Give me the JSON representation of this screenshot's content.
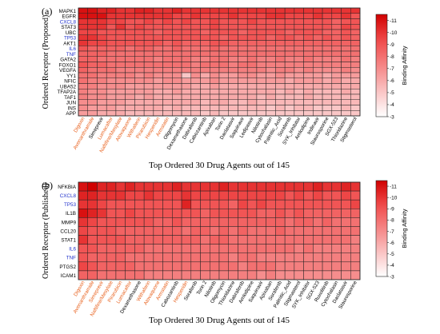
{
  "figure_labels": [
    "(a)",
    "(b)"
  ],
  "colors": {
    "accent_text": "#e8601c",
    "highlight_text": "#2233cc",
    "normal_text": "#000000",
    "scale_low": "#ffffff",
    "scale_mid": "#f04a4a",
    "scale_high": "#d00000",
    "grid": "#222222"
  },
  "chart_data": [
    {
      "type": "heatmap",
      "panel": "(a)",
      "ylabel": "Ordered Receptor (Proposed)",
      "xlabel": "Top Ordered 30 Drug Agents out of 145",
      "colorbar_label": "Binding Affinity",
      "colorbar_ticks": [
        "-11",
        "-10",
        "-9",
        "-8",
        "-7",
        "-6",
        "-5",
        "-4",
        "-3"
      ],
      "value_range": [
        -3,
        -11.5
      ],
      "rows": [
        "MAPK1",
        "EGFR",
        "CXCL8",
        "STAT3",
        "UBC",
        "TP53",
        "AKT1",
        "IL6",
        "TNF",
        "GATA2",
        "FOXO1",
        "VEGFA",
        "YY1",
        "NFIC",
        "UBA52",
        "TFAP2A",
        "TAF1",
        "JUN",
        "INS",
        "APP"
      ],
      "row_highlight": [
        false,
        false,
        true,
        false,
        false,
        true,
        false,
        true,
        true,
        false,
        false,
        false,
        false,
        false,
        false,
        false,
        false,
        false,
        false,
        false
      ],
      "columns": [
        "Digoxin",
        "Avenanthramide",
        "Simeprevir",
        "Lumacaftor",
        "Naftifine/Mesylate",
        "Atovaquone",
        "Withaferin",
        "Pirarubicin",
        "Hesperidin",
        "Armstatin",
        "Oligomycin",
        "Dexamethasone",
        "Dabrafenib",
        "Cabozantinib",
        "Apixaban",
        "Torin 2",
        "Daclatasvir",
        "Saquinavir",
        "Ledipasvir",
        "Nilotinib",
        "Cytochalasin",
        "Palmitic_Acid",
        "Sorafenib",
        "SYK_Inhibitor",
        "Amlodipine",
        "Indinavir",
        "Staurosporine",
        "SGX-523",
        "Thioridazine",
        "Stigmasterol"
      ],
      "column_highlight": [
        true,
        true,
        false,
        true,
        true,
        true,
        true,
        true,
        true,
        true,
        false,
        false,
        false,
        false,
        false,
        false,
        false,
        false,
        false,
        false,
        false,
        false,
        false,
        false,
        false,
        false,
        false,
        false,
        false,
        false
      ],
      "values": [
        [
          -11,
          -11,
          -10.5,
          -10.5,
          -10,
          -10,
          -10.5,
          -10.5,
          -10,
          -10,
          -10.5,
          -10,
          -10,
          -10,
          -10,
          -10,
          -10,
          -10,
          -10,
          -10,
          -10,
          -10,
          -10,
          -10,
          -10,
          -10,
          -10,
          -10,
          -10,
          -10
        ],
        [
          -11,
          -11,
          -11,
          -10,
          -10,
          -10,
          -10,
          -10,
          -10,
          -10,
          -9.5,
          -9.5,
          -10,
          -9.5,
          -9.5,
          -9.5,
          -10,
          -9.5,
          -9.5,
          -9.5,
          -10,
          -10,
          -9.5,
          -9.5,
          -9.5,
          -10,
          -9.5,
          -9.5,
          -10,
          -9
        ],
        [
          -10,
          -10,
          -10,
          -9.5,
          -9.5,
          -9,
          -9,
          -9.5,
          -9,
          -9.5,
          -9,
          -9.5,
          -9,
          -9,
          -9.5,
          -9,
          -9,
          -9,
          -9.5,
          -9,
          -9,
          -9,
          -9,
          -9,
          -9,
          -9,
          -9,
          -8.5,
          -9,
          -9
        ],
        [
          -10,
          -10,
          -10,
          -9,
          -10,
          -9,
          -9.5,
          -9,
          -9,
          -9,
          -9,
          -9,
          -9,
          -9,
          -9.5,
          -9,
          -9,
          -9,
          -9,
          -9,
          -9,
          -9,
          -9,
          -9,
          -9,
          -9,
          -9,
          -8.5,
          -9.5,
          -9
        ],
        [
          -9.5,
          -9.5,
          -9,
          -9,
          -9,
          -9,
          -9,
          -9,
          -8.5,
          -9,
          -9,
          -9,
          -9,
          -8.5,
          -9,
          -9,
          -9,
          -8.5,
          -9,
          -9,
          -9,
          -9,
          -8.5,
          -9,
          -9,
          -9,
          -8.5,
          -8.5,
          -9,
          -8.5
        ],
        [
          -10,
          -10,
          -9.5,
          -9,
          -9,
          -9,
          -9,
          -9,
          -9,
          -9,
          -9,
          -9,
          -9,
          -9,
          -9,
          -8.5,
          -9,
          -9,
          -9,
          -9,
          -8.5,
          -9,
          -9,
          -8.5,
          -9,
          -8.5,
          -9,
          -8.5,
          -9,
          -8.5
        ],
        [
          -10,
          -9.5,
          -9.5,
          -9,
          -9,
          -9,
          -9,
          -9,
          -9,
          -8.5,
          -9,
          -8.5,
          -8.5,
          -8.5,
          -9,
          -9,
          -8.5,
          -8.5,
          -8.5,
          -8.5,
          -8.5,
          -8.5,
          -8.5,
          -8.5,
          -8.5,
          -8.5,
          -8.5,
          -8.5,
          -8.5,
          -8.5
        ],
        [
          -9,
          -8.5,
          -8.5,
          -8.5,
          -8.5,
          -8,
          -8.5,
          -8.5,
          -8,
          -8,
          -8.5,
          -8,
          -8,
          -8,
          -8.5,
          -8,
          -8,
          -8,
          -8,
          -8,
          -8,
          -8,
          -8,
          -8,
          -8,
          -8,
          -8,
          -8,
          -8,
          -8
        ],
        [
          -8.5,
          -8.5,
          -8.5,
          -8,
          -8,
          -8,
          -8,
          -8,
          -8,
          -8,
          -8,
          -8,
          -8,
          -8,
          -8,
          -8,
          -8,
          -8,
          -8,
          -8,
          -8,
          -8,
          -8,
          -8,
          -8,
          -8,
          -8,
          -8,
          -8,
          -8
        ],
        [
          -8.5,
          -8.5,
          -8,
          -8,
          -8,
          -8,
          -8,
          -8,
          -7.5,
          -8,
          -8,
          -8,
          -7.5,
          -7.5,
          -8,
          -8,
          -7.5,
          -7.5,
          -8,
          -7.5,
          -7.5,
          -8,
          -7.5,
          -7.5,
          -8,
          -7.5,
          -7.5,
          -7.5,
          -8,
          -7.5
        ],
        [
          -9,
          -8.5,
          -8.5,
          -8,
          -8,
          -8,
          -8,
          -8,
          -8,
          -8,
          -8,
          -8,
          -7.5,
          -8,
          -8,
          -8,
          -7.5,
          -8,
          -8,
          -7.5,
          -7.5,
          -7.5,
          -7.5,
          -7.5,
          -7.5,
          -7.5,
          -7.5,
          -7.5,
          -7.5,
          -7.5
        ],
        [
          -8.5,
          -8,
          -8,
          -8,
          -7.5,
          -7.5,
          -7.5,
          -7.5,
          -7.5,
          -7.5,
          -7.5,
          -7.5,
          -7.5,
          -7.5,
          -7.5,
          -7.5,
          -7.5,
          -7.5,
          -7.5,
          -7.5,
          -7,
          -7.5,
          -7.5,
          -7,
          -7.5,
          -7,
          -7,
          -7,
          -7.5,
          -7
        ],
        [
          -8,
          -8,
          -7.5,
          -7.5,
          -7.5,
          -7.5,
          -7,
          -7.5,
          -7,
          -7,
          -7,
          -5,
          -7,
          -6,
          -7,
          -6.5,
          -6.5,
          -7,
          -7,
          -6.5,
          -6.5,
          -7,
          -6.5,
          -6.5,
          -6.5,
          -6.5,
          -6,
          -6.5,
          -6.5,
          -6.5
        ],
        [
          -8,
          -7.5,
          -7.5,
          -7,
          -7,
          -7,
          -7,
          -7,
          -6.5,
          -7,
          -7,
          -6.5,
          -6.5,
          -6.5,
          -7,
          -6.5,
          -6.5,
          -6.5,
          -6.5,
          -6.5,
          -6.5,
          -6.5,
          -6,
          -6.5,
          -6.5,
          -6.5,
          -6,
          -6.5,
          -6,
          -6
        ],
        [
          -7.5,
          -7.5,
          -7,
          -7,
          -7,
          -6.5,
          -6.5,
          -6.5,
          -6.5,
          -6.5,
          -6.5,
          -6.5,
          -6,
          -6,
          -6.5,
          -6,
          -6,
          -6,
          -6,
          -6,
          -6,
          -6,
          -6,
          -6,
          -6,
          -6,
          -6,
          -6,
          -6,
          -6
        ],
        [
          -7.5,
          -7,
          -7,
          -6.5,
          -6.5,
          -6.5,
          -6.5,
          -6.5,
          -6,
          -6,
          -6.5,
          -6,
          -6,
          -6,
          -6,
          -6,
          -6,
          -6,
          -6,
          -6,
          -6,
          -5.5,
          -6,
          -5.5,
          -6,
          -5.5,
          -5.5,
          -5.5,
          -6,
          -5.5
        ],
        [
          -7.5,
          -7,
          -7,
          -6.5,
          -6.5,
          -6.5,
          -6,
          -6.5,
          -6,
          -6,
          -6,
          -6,
          -6,
          -6,
          -6,
          -6,
          -6,
          -6,
          -6,
          -5.5,
          -6,
          -5.5,
          -5.5,
          -5.5,
          -6,
          -5.5,
          -5.5,
          -5.5,
          -5.5,
          -5.5
        ],
        [
          -7,
          -7,
          -6.5,
          -6.5,
          -6.5,
          -6,
          -6,
          -6,
          -6,
          -6,
          -6,
          -6,
          -6,
          -5.5,
          -6,
          -6,
          -5.5,
          -5.5,
          -6,
          -5.5,
          -5.5,
          -5.5,
          -5.5,
          -5.5,
          -5.5,
          -5.5,
          -5.5,
          -5.5,
          -5.5,
          -5.5
        ],
        [
          -7,
          -6.5,
          -6.5,
          -6.5,
          -6,
          -6,
          -6,
          -6,
          -6,
          -5.5,
          -6,
          -5.5,
          -5.5,
          -5.5,
          -5.5,
          -5.5,
          -5.5,
          -5.5,
          -5.5,
          -5.5,
          -5,
          -5.5,
          -5,
          -5.5,
          -5.5,
          -5,
          -5,
          -5,
          -5.5,
          -5
        ],
        [
          -6.5,
          -6.5,
          -6,
          -6,
          -6,
          -5.5,
          -5.5,
          -5.5,
          -5.5,
          -5.5,
          -5.5,
          -5.5,
          -5.5,
          -5,
          -5.5,
          -5,
          -5,
          -5,
          -5,
          -5,
          -5,
          -5,
          -5,
          -5,
          -5,
          -5,
          -5,
          -5,
          -5,
          -5
        ]
      ]
    },
    {
      "type": "heatmap",
      "panel": "(b)",
      "ylabel": "Ordered Receptor (Published)",
      "xlabel": "Top Ordered 30 Drug Agents out of 145",
      "colorbar_label": "Binding Affinity",
      "colorbar_ticks": [
        "-11",
        "-10",
        "-9",
        "-8",
        "-7",
        "-6",
        "-5",
        "-4",
        "-3"
      ],
      "value_range": [
        -3,
        -11.5
      ],
      "rows": [
        "NFKBIA",
        "CXCL8",
        "TP53",
        "IL1B",
        "MMP9",
        "CCL20",
        "STAT1",
        "IL6",
        "TNF",
        "PTGS2",
        "ICAM1"
      ],
      "row_highlight": [
        false,
        true,
        true,
        false,
        false,
        false,
        false,
        true,
        true,
        false,
        false
      ],
      "columns": [
        "Digoxin",
        "Avenanthramide",
        "Simeprevir",
        "Naftifine/Mesylate",
        "Pirarubicin",
        "Lumacaftor",
        "Dexamethasone",
        "Withaferin",
        "Atovaquone",
        "Armstatin",
        "Cabozantinib",
        "Hesperidin",
        "Sorafenib",
        "Torin 2",
        "Nilotinib",
        "Oligomycin",
        "Thioridazine",
        "Dabrafenib",
        "Amlodipine",
        "Saquinavir",
        "Apixaban",
        "Sorafenib",
        "Palmitic_Acid",
        "Stigmasterol",
        "SYK_Inhibitor",
        "SGX-523",
        "Ruxolitinib",
        "Cytochalasin",
        "Daclatasvir",
        "Staurosporine"
      ],
      "column_highlight": [
        true,
        true,
        true,
        true,
        true,
        true,
        false,
        true,
        true,
        true,
        false,
        true,
        false,
        false,
        false,
        false,
        false,
        false,
        false,
        false,
        false,
        false,
        false,
        false,
        false,
        false,
        false,
        false,
        false,
        false
      ],
      "values": [
        [
          -11,
          -11.5,
          -10.5,
          -10.5,
          -10,
          -10.5,
          -10,
          -10,
          -10,
          -10,
          -10.5,
          -10,
          -10,
          -10,
          -10,
          -10.5,
          -10,
          -10,
          -10,
          -10,
          -10,
          -10,
          -10,
          -10,
          -10,
          -10.5,
          -10,
          -10,
          -10.5,
          -10
        ],
        [
          -10.5,
          -10.5,
          -10,
          -10,
          -10,
          -9.5,
          -9.5,
          -10,
          -9.5,
          -9.5,
          -9.5,
          -10,
          -9.5,
          -9.5,
          -9.5,
          -9.5,
          -9.5,
          -9.5,
          -9.5,
          -9.5,
          -9.5,
          -9.5,
          -9,
          -9.5,
          -9,
          -9.5,
          -9,
          -9,
          -9.5,
          -9
        ],
        [
          -10,
          -10,
          -9.5,
          -9,
          -9,
          -9,
          -9,
          -9,
          -9,
          -9,
          -9,
          -10.5,
          -9,
          -9,
          -9,
          -9,
          -8.5,
          -9.5,
          -9,
          -9.5,
          -9,
          -9,
          -9,
          -9,
          -9,
          -9,
          -9,
          -9,
          -9,
          -9.5
        ],
        [
          -11,
          -10.5,
          -10,
          -9,
          -9,
          -9.5,
          -9,
          -9,
          -9,
          -9,
          -9,
          -9,
          -9,
          -8.5,
          -9,
          -9,
          -9,
          -9,
          -9,
          -8.5,
          -8.5,
          -9,
          -8.5,
          -9,
          -8.5,
          -8.5,
          -8.5,
          -8.5,
          -8.5,
          -8.5
        ],
        [
          -10,
          -9.5,
          -9,
          -9,
          -9,
          -9,
          -9,
          -9,
          -8.5,
          -8.5,
          -9,
          -8.5,
          -8.5,
          -8.5,
          -8.5,
          -8.5,
          -8.5,
          -8.5,
          -8.5,
          -8.5,
          -8.5,
          -8.5,
          -8,
          -8.5,
          -8.5,
          -8,
          -8.5,
          -8,
          -8,
          -8
        ],
        [
          -9.5,
          -9,
          -9,
          -9,
          -8.5,
          -8.5,
          -8.5,
          -8.5,
          -8.5,
          -8.5,
          -8.5,
          -8,
          -8.5,
          -8.5,
          -8,
          -8.5,
          -8,
          -8.5,
          -8,
          -8,
          -8,
          -8.5,
          -8,
          -8,
          -8,
          -8,
          -8,
          -8,
          -8,
          -8
        ],
        [
          -10,
          -9,
          -9,
          -9,
          -9,
          -8.5,
          -8.5,
          -8.5,
          -8.5,
          -8.5,
          -8.5,
          -8.5,
          -8.5,
          -8,
          -8.5,
          -8.5,
          -8,
          -8,
          -8,
          -8,
          -8,
          -8,
          -8,
          -8,
          -8,
          -8,
          -8,
          -8,
          -8,
          -7.5
        ],
        [
          -9,
          -9,
          -8.5,
          -8.5,
          -8.5,
          -8.5,
          -8.5,
          -8,
          -8,
          -8,
          -8,
          -8,
          -8,
          -8,
          -8,
          -8,
          -8,
          -8,
          -8,
          -8,
          -8,
          -8,
          -8,
          -7.5,
          -8,
          -7.5,
          -7.5,
          -7.5,
          -7.5,
          -7.5
        ],
        [
          -9,
          -8.5,
          -8.5,
          -8.5,
          -8.5,
          -8,
          -8,
          -8,
          -8,
          -8,
          -8,
          -8,
          -8,
          -8,
          -8,
          -8,
          -7.5,
          -8,
          -8,
          -7.5,
          -7.5,
          -7.5,
          -7.5,
          -7.5,
          -7.5,
          -7.5,
          -7.5,
          -7.5,
          -7.5,
          -7.5
        ],
        [
          -9.5,
          -9,
          -8.5,
          -8.5,
          -8.5,
          -8.5,
          -8,
          -8,
          -8,
          -8,
          -8,
          -8,
          -8,
          -8,
          -8,
          -8,
          -8,
          -7.5,
          -8,
          -8,
          -8,
          -7.5,
          -7.5,
          -7.5,
          -7.5,
          -7.5,
          -7.5,
          -7.5,
          -7.5,
          -7.5
        ],
        [
          -8.5,
          -8.5,
          -8,
          -8,
          -8,
          -8,
          -8,
          -7.5,
          -7.5,
          -7.5,
          -7.5,
          -7.5,
          -7.5,
          -7.5,
          -7.5,
          -7.5,
          -7.5,
          -7.5,
          -7.5,
          -7,
          -7.5,
          -7,
          -7,
          -7,
          -7,
          -7,
          -7,
          -7,
          -7,
          -7
        ]
      ]
    }
  ]
}
